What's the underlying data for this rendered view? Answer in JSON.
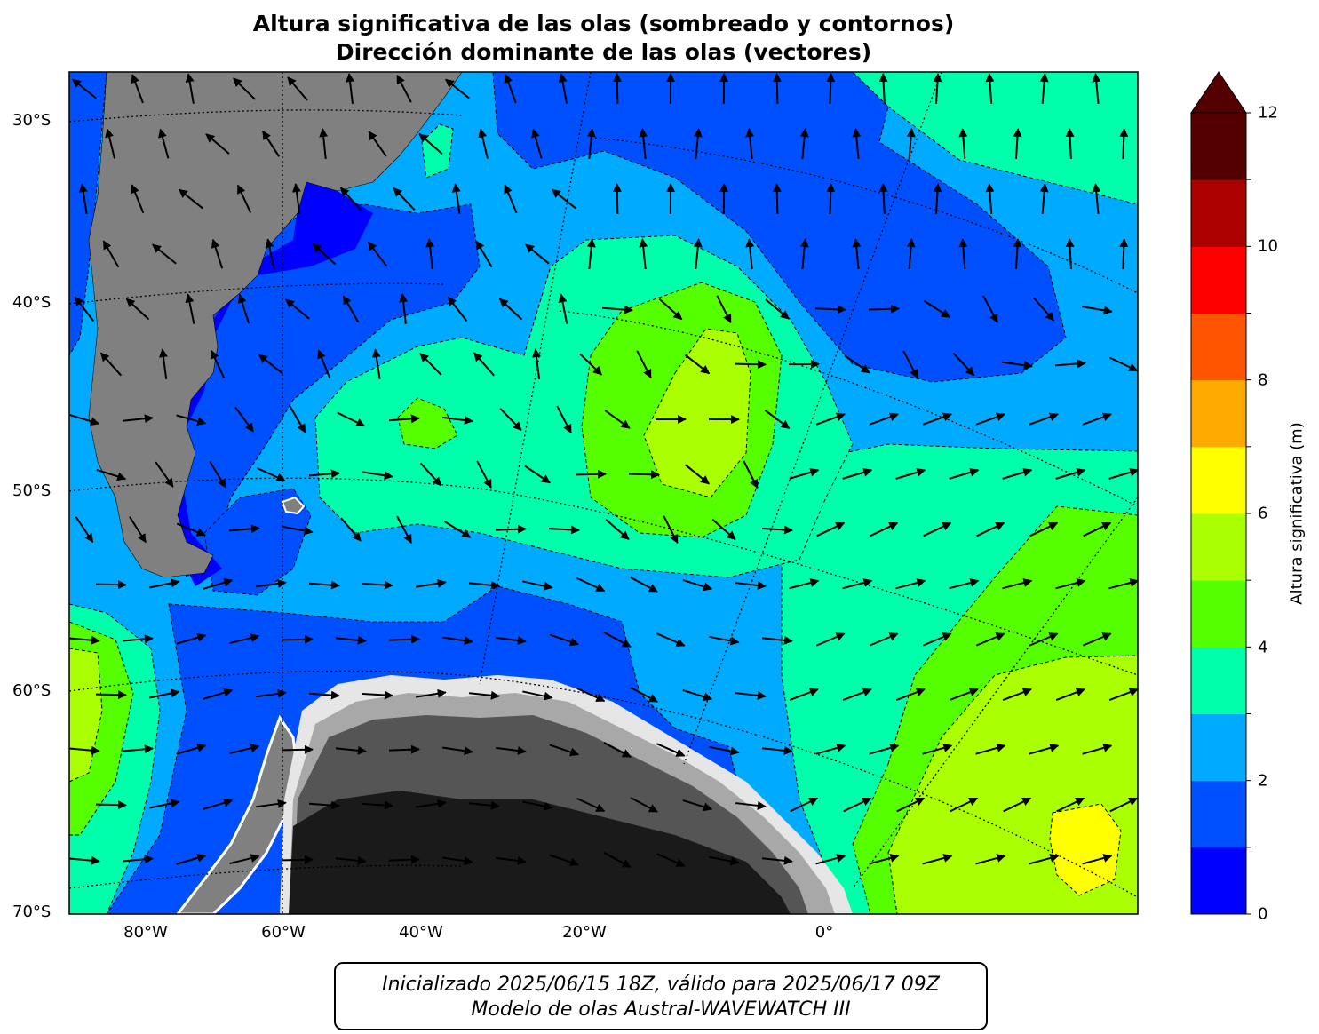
{
  "title_line1": "Altura significativa de las olas (sombreado y contornos)",
  "title_line2": "Dirección dominante de las olas (vectores)",
  "lat_labels": [
    "30°S",
    "40°S",
    "50°S",
    "60°S",
    "70°S"
  ],
  "lon_labels": [
    "80°W",
    "60°W",
    "40°W",
    "20°W",
    "0°"
  ],
  "colorbar": {
    "label": "Altura significativa (m)",
    "ticks": [
      "0",
      "2",
      "4",
      "6",
      "8",
      "10",
      "12"
    ],
    "levels": [
      0,
      1,
      2,
      3,
      4,
      5,
      6,
      7,
      8,
      9,
      10,
      11,
      12
    ],
    "colors": [
      "#0000ff",
      "#0050ff",
      "#00aaff",
      "#00ffaa",
      "#55ff00",
      "#aaff00",
      "#ffff00",
      "#ffaa00",
      "#ff5500",
      "#ff0000",
      "#aa0000",
      "#550000"
    ],
    "extend": "max"
  },
  "footer_line1": "Inicializado 2025/06/15 18Z, válido para 2025/06/17 09Z",
  "footer_line2": "Modelo de olas Austral-WAVEWATCH III"
}
